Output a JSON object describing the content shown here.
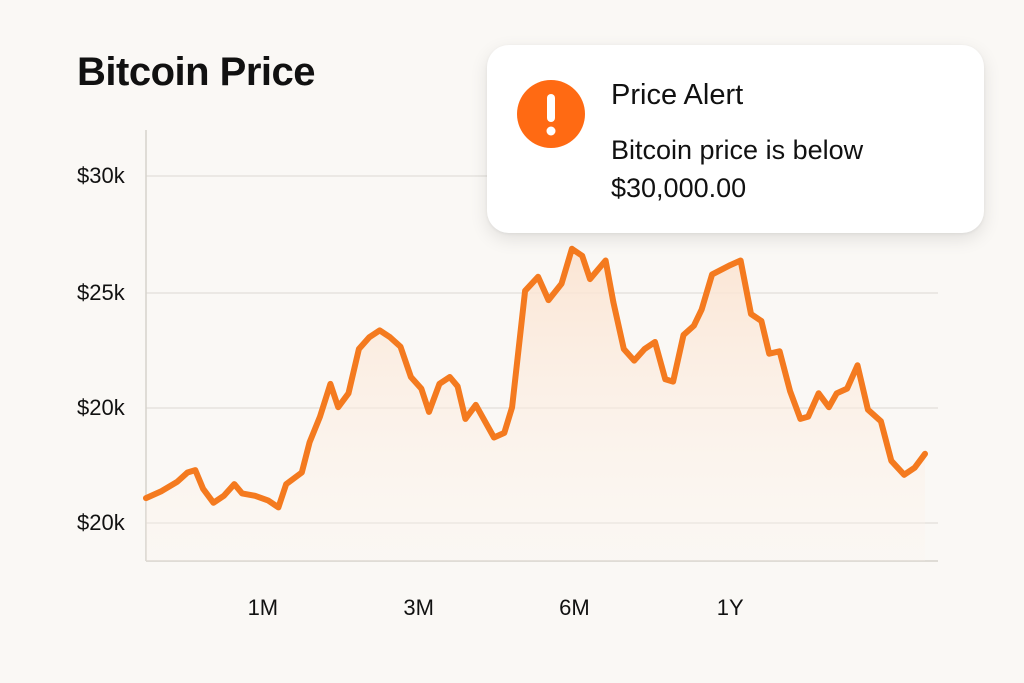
{
  "page": {
    "title": "Bitcoin Price"
  },
  "alert": {
    "icon": "exclamation-icon",
    "icon_color": "#ff6a13",
    "title": "Price Alert",
    "message": "Bitcoin price is below $30,000.00"
  },
  "colors": {
    "line": "#f47a1f",
    "fill_top": "#fbe3d0",
    "grid": "#e6e3df"
  },
  "chart_data": {
    "type": "area",
    "title": "Bitcoin Price",
    "xlabel": "",
    "ylabel": "",
    "y_tick_labels": [
      "$30k",
      "$25k",
      "$20k",
      "$20k"
    ],
    "x_tick_labels": [
      "1M",
      "3M",
      "6M",
      "1Y"
    ],
    "x_tick_positions": [
      4.5,
      10.5,
      16.5,
      22.5
    ],
    "xlim": [
      0,
      30.5
    ],
    "ylim": [
      13.5,
      32
    ],
    "grid": true,
    "series": [
      {
        "values": [
          [
            0,
            16.2
          ],
          [
            0.6,
            16.5
          ],
          [
            1.2,
            16.9
          ],
          [
            1.6,
            17.3
          ],
          [
            1.9,
            17.4
          ],
          [
            2.2,
            16.6
          ],
          [
            2.6,
            16.0
          ],
          [
            3.0,
            16.3
          ],
          [
            3.4,
            16.8
          ],
          [
            3.7,
            16.4
          ],
          [
            4.2,
            16.3
          ],
          [
            4.7,
            16.1
          ],
          [
            5.1,
            15.8
          ],
          [
            5.4,
            16.8
          ],
          [
            6.0,
            17.3
          ],
          [
            6.3,
            18.6
          ],
          [
            6.7,
            19.7
          ],
          [
            7.1,
            21.1
          ],
          [
            7.4,
            20.1
          ],
          [
            7.8,
            20.7
          ],
          [
            8.2,
            22.6
          ],
          [
            8.6,
            23.1
          ],
          [
            9.0,
            23.4
          ],
          [
            9.4,
            23.1
          ],
          [
            9.8,
            22.7
          ],
          [
            10.2,
            21.4
          ],
          [
            10.6,
            20.9
          ],
          [
            10.9,
            19.9
          ],
          [
            11.3,
            21.1
          ],
          [
            11.7,
            21.4
          ],
          [
            12.0,
            21.0
          ],
          [
            12.3,
            19.6
          ],
          [
            12.7,
            20.2
          ],
          [
            13.0,
            19.6
          ],
          [
            13.4,
            18.8
          ],
          [
            13.8,
            19.0
          ],
          [
            14.1,
            20.1
          ],
          [
            14.6,
            25.1
          ],
          [
            15.1,
            25.7
          ],
          [
            15.5,
            24.7
          ],
          [
            16.0,
            25.4
          ],
          [
            16.4,
            26.9
          ],
          [
            16.8,
            26.6
          ],
          [
            17.1,
            25.6
          ],
          [
            17.7,
            26.4
          ],
          [
            18.0,
            24.6
          ],
          [
            18.4,
            22.6
          ],
          [
            18.8,
            22.1
          ],
          [
            19.2,
            22.6
          ],
          [
            19.6,
            22.9
          ],
          [
            20.0,
            21.3
          ],
          [
            20.3,
            21.2
          ],
          [
            20.7,
            23.2
          ],
          [
            21.1,
            23.6
          ],
          [
            21.4,
            24.3
          ],
          [
            21.8,
            25.8
          ],
          [
            22.5,
            26.2
          ],
          [
            22.9,
            26.4
          ],
          [
            23.3,
            24.1
          ],
          [
            23.7,
            23.8
          ],
          [
            24.0,
            22.4
          ],
          [
            24.4,
            22.5
          ],
          [
            24.8,
            20.8
          ],
          [
            25.2,
            19.6
          ],
          [
            25.5,
            19.7
          ],
          [
            25.9,
            20.7
          ],
          [
            26.3,
            20.1
          ],
          [
            26.6,
            20.7
          ],
          [
            27.0,
            20.9
          ],
          [
            27.4,
            21.9
          ],
          [
            27.8,
            20.0
          ],
          [
            28.3,
            19.5
          ],
          [
            28.7,
            17.8
          ],
          [
            29.2,
            17.2
          ],
          [
            29.6,
            17.5
          ],
          [
            30.0,
            18.1
          ]
        ]
      }
    ]
  }
}
